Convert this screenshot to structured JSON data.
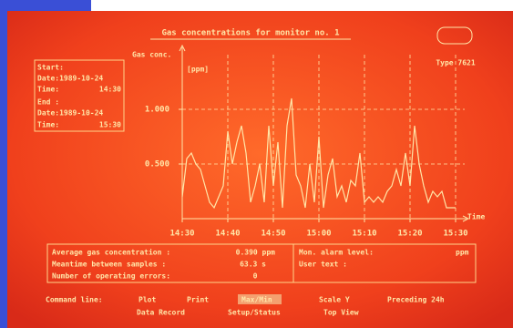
{
  "chart_data": {
    "type": "line",
    "title": "Gas concentrations for monitor no. 1",
    "ylabel": "Gas conc.",
    "yunit": "[ppm]",
    "xlabel": "Time",
    "x": [
      870,
      871,
      872,
      873,
      874,
      875,
      876,
      877,
      878,
      879,
      880,
      881,
      882,
      883,
      884,
      885,
      886,
      887,
      888,
      889,
      890,
      891,
      892,
      893,
      894,
      895,
      896,
      897,
      898,
      899,
      900,
      901,
      902,
      903,
      904,
      905,
      906,
      907,
      908,
      909,
      910,
      911,
      912,
      913,
      914,
      915,
      916,
      917,
      918,
      919,
      920,
      921,
      922,
      923,
      924,
      925,
      926,
      927,
      928,
      929,
      930
    ],
    "series": [
      {
        "name": "Gas conc.",
        "color": "#ffe6a8",
        "values": [
          0.2,
          0.55,
          0.6,
          0.5,
          0.45,
          0.3,
          0.15,
          0.1,
          0.2,
          0.3,
          0.8,
          0.5,
          0.7,
          0.85,
          0.6,
          0.15,
          0.3,
          0.5,
          0.15,
          0.85,
          0.3,
          0.7,
          0.1,
          0.85,
          1.1,
          0.4,
          0.3,
          0.1,
          0.5,
          0.15,
          0.75,
          0.1,
          0.4,
          0.55,
          0.2,
          0.3,
          0.15,
          0.35,
          0.3,
          0.6,
          0.15,
          0.2,
          0.15,
          0.2,
          0.15,
          0.25,
          0.3,
          0.45,
          0.3,
          0.6,
          0.3,
          0.85,
          0.5,
          0.3,
          0.15,
          0.25,
          0.2,
          0.25,
          0.1,
          0.1,
          0.1
        ]
      }
    ],
    "xlim": [
      870,
      932
    ],
    "xticks": [
      {
        "value": 870,
        "label": "14:30"
      },
      {
        "value": 880,
        "label": "14:40"
      },
      {
        "value": 890,
        "label": "14:50"
      },
      {
        "value": 900,
        "label": "15:00"
      },
      {
        "value": 910,
        "label": "15:10"
      },
      {
        "value": 920,
        "label": "15:20"
      },
      {
        "value": 930,
        "label": "15:30"
      }
    ],
    "ylim": [
      0,
      1.5
    ],
    "yticks": [
      {
        "value": 0.5,
        "label": "0.500"
      },
      {
        "value": 1,
        "label": "1.000"
      }
    ],
    "grid": true
  },
  "header": {
    "model": "Type 7621"
  },
  "period": {
    "start_label": "Start:",
    "start_date": "Date:1989-10-24",
    "start_time_label": "Time:",
    "start_time": "14:30",
    "end_label": "End :",
    "end_date": "Date:1989-10-24",
    "end_time_label": "Time:",
    "end_time": "15:30"
  },
  "stats": {
    "avg_label": "Average gas concentration :",
    "avg_value": "0.390 ppm",
    "mean_label": "Meantime between samples :",
    "mean_value": "63.3 s",
    "errors_label": "Number of operating errors:",
    "errors_value": "0",
    "alarm_label": "Mon. alarm level:",
    "alarm_unit": "ppm",
    "user_label": "User text :"
  },
  "commands": {
    "label": "Command line:",
    "items": [
      "Plot",
      "Print",
      "Max/Min",
      "Scale Y",
      "Preceding 24h",
      "Data Record",
      "Setup/Status",
      "Top View"
    ]
  }
}
